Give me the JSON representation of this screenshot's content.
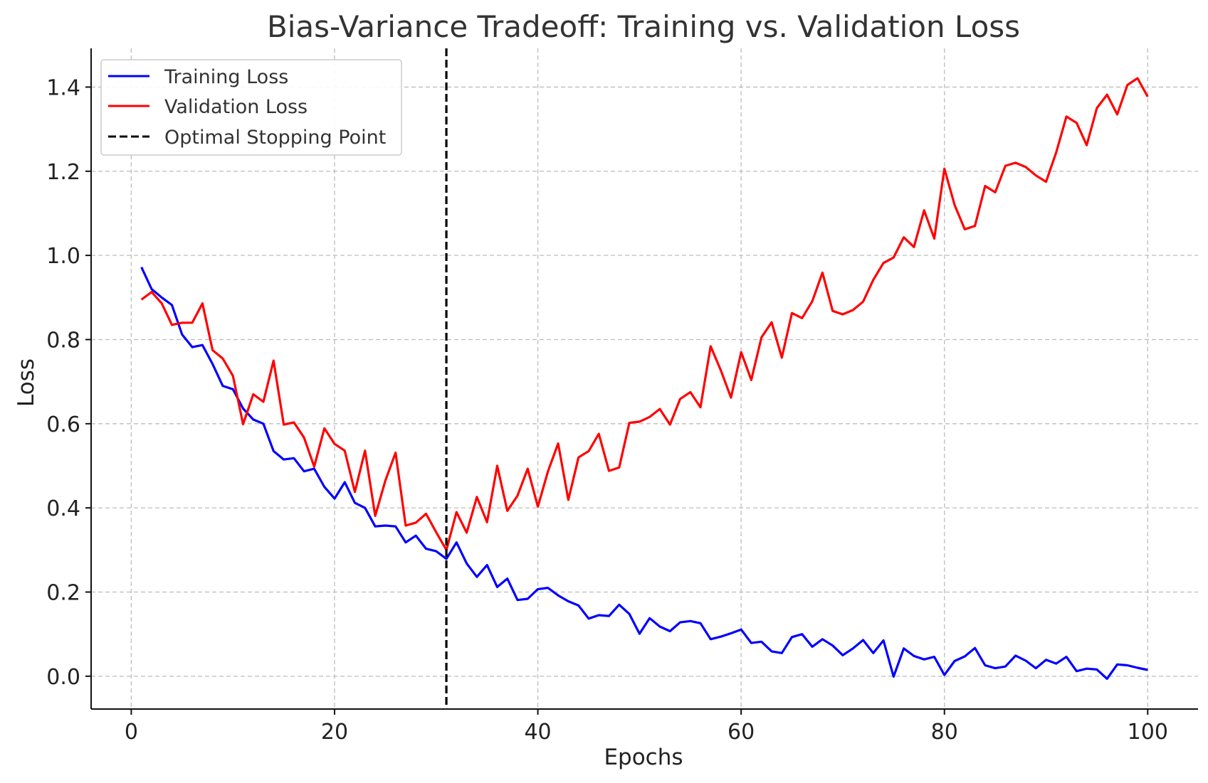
{
  "chart_data": {
    "type": "line",
    "title": "Bias-Variance Tradeoff: Training vs. Validation Loss",
    "xlabel": "Epochs",
    "ylabel": "Loss",
    "xlim": [
      -3.95,
      104.95
    ],
    "ylim": [
      -0.078,
      1.492
    ],
    "xticks": [
      0,
      20,
      40,
      60,
      80,
      100
    ],
    "yticks": [
      0.0,
      0.2,
      0.4,
      0.6,
      0.8,
      1.0,
      1.2,
      1.4
    ],
    "xtick_labels": [
      "0",
      "20",
      "40",
      "60",
      "80",
      "100"
    ],
    "ytick_labels": [
      "0.0",
      "0.2",
      "0.4",
      "0.6",
      "0.8",
      "1.0",
      "1.2",
      "1.4"
    ],
    "grid": true,
    "legend_position": "top-left",
    "x": [
      1,
      2,
      3,
      4,
      5,
      6,
      7,
      8,
      9,
      10,
      11,
      12,
      13,
      14,
      15,
      16,
      17,
      18,
      19,
      20,
      21,
      22,
      23,
      24,
      25,
      26,
      27,
      28,
      29,
      30,
      31,
      32,
      33,
      34,
      35,
      36,
      37,
      38,
      39,
      40,
      41,
      42,
      43,
      44,
      45,
      46,
      47,
      48,
      49,
      50,
      51,
      52,
      53,
      54,
      55,
      56,
      57,
      58,
      59,
      60,
      61,
      62,
      63,
      64,
      65,
      66,
      67,
      68,
      69,
      70,
      71,
      72,
      73,
      74,
      75,
      76,
      77,
      78,
      79,
      80,
      81,
      82,
      83,
      84,
      85,
      86,
      87,
      88,
      89,
      90,
      91,
      92,
      93,
      94,
      95,
      96,
      97,
      98,
      99,
      100
    ],
    "series": [
      {
        "name": "Training Loss",
        "color": "#0000ff",
        "values": [
          0.972,
          0.92,
          0.9,
          0.882,
          0.812,
          0.782,
          0.787,
          0.742,
          0.69,
          0.682,
          0.636,
          0.61,
          0.6,
          0.535,
          0.515,
          0.518,
          0.487,
          0.493,
          0.45,
          0.422,
          0.461,
          0.412,
          0.4,
          0.356,
          0.358,
          0.356,
          0.318,
          0.334,
          0.303,
          0.297,
          0.279,
          0.318,
          0.268,
          0.236,
          0.264,
          0.212,
          0.232,
          0.181,
          0.184,
          0.207,
          0.21,
          0.192,
          0.178,
          0.168,
          0.137,
          0.145,
          0.143,
          0.17,
          0.148,
          0.101,
          0.138,
          0.118,
          0.107,
          0.128,
          0.131,
          0.126,
          0.088,
          0.094,
          0.102,
          0.111,
          0.079,
          0.082,
          0.059,
          0.055,
          0.093,
          0.1,
          0.07,
          0.088,
          0.073,
          0.05,
          0.066,
          0.086,
          0.055,
          0.085,
          -0.001,
          0.066,
          0.048,
          0.04,
          0.046,
          0.003,
          0.036,
          0.047,
          0.067,
          0.026,
          0.019,
          0.023,
          0.049,
          0.037,
          0.019,
          0.039,
          0.03,
          0.046,
          0.012,
          0.018,
          0.016,
          -0.006,
          0.028,
          0.026,
          0.02,
          0.015
        ]
      },
      {
        "name": "Validation Loss",
        "color": "#ff0000",
        "values": [
          0.895,
          0.913,
          0.886,
          0.835,
          0.84,
          0.84,
          0.886,
          0.775,
          0.755,
          0.714,
          0.599,
          0.67,
          0.652,
          0.75,
          0.598,
          0.603,
          0.567,
          0.498,
          0.589,
          0.552,
          0.536,
          0.438,
          0.536,
          0.381,
          0.465,
          0.531,
          0.358,
          0.365,
          0.386,
          0.342,
          0.3,
          0.39,
          0.341,
          0.426,
          0.366,
          0.5,
          0.393,
          0.429,
          0.493,
          0.403,
          0.487,
          0.553,
          0.419,
          0.52,
          0.535,
          0.576,
          0.488,
          0.496,
          0.602,
          0.605,
          0.616,
          0.635,
          0.598,
          0.659,
          0.675,
          0.639,
          0.784,
          0.727,
          0.662,
          0.77,
          0.704,
          0.805,
          0.841,
          0.757,
          0.863,
          0.851,
          0.891,
          0.959,
          0.868,
          0.86,
          0.87,
          0.89,
          0.942,
          0.982,
          0.995,
          1.043,
          1.02,
          1.107,
          1.04,
          1.206,
          1.12,
          1.062,
          1.07,
          1.165,
          1.15,
          1.213,
          1.22,
          1.21,
          1.19,
          1.175,
          1.245,
          1.33,
          1.315,
          1.262,
          1.35,
          1.382,
          1.335,
          1.405,
          1.421,
          1.377
        ]
      }
    ],
    "vline": {
      "name": "Optimal Stopping Point",
      "x": 31,
      "color": "#000000",
      "style": "dashed"
    }
  }
}
